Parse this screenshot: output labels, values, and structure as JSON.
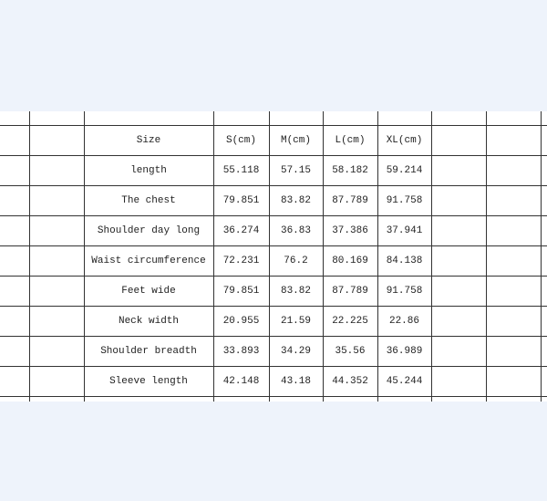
{
  "table": {
    "headers": [
      "Size",
      "S(cm)",
      "M(cm)",
      "L(cm)",
      "XL(cm)"
    ],
    "rows": [
      [
        "length",
        "55.118",
        "57.15",
        "58.182",
        "59.214"
      ],
      [
        "The chest",
        "79.851",
        "83.82",
        "87.789",
        "91.758"
      ],
      [
        "Shoulder day long",
        "36.274",
        "36.83",
        "37.386",
        "37.941"
      ],
      [
        "Waist circumference",
        "72.231",
        "76.2",
        "80.169",
        "84.138"
      ],
      [
        "Feet wide",
        "79.851",
        "83.82",
        "87.789",
        "91.758"
      ],
      [
        "Neck width",
        "20.955",
        "21.59",
        "22.225",
        "22.86"
      ],
      [
        "Shoulder breadth",
        "33.893",
        "34.29",
        "35.56",
        "36.989"
      ],
      [
        "Sleeve length",
        "42.148",
        "43.18",
        "44.352",
        "45.244"
      ]
    ]
  }
}
